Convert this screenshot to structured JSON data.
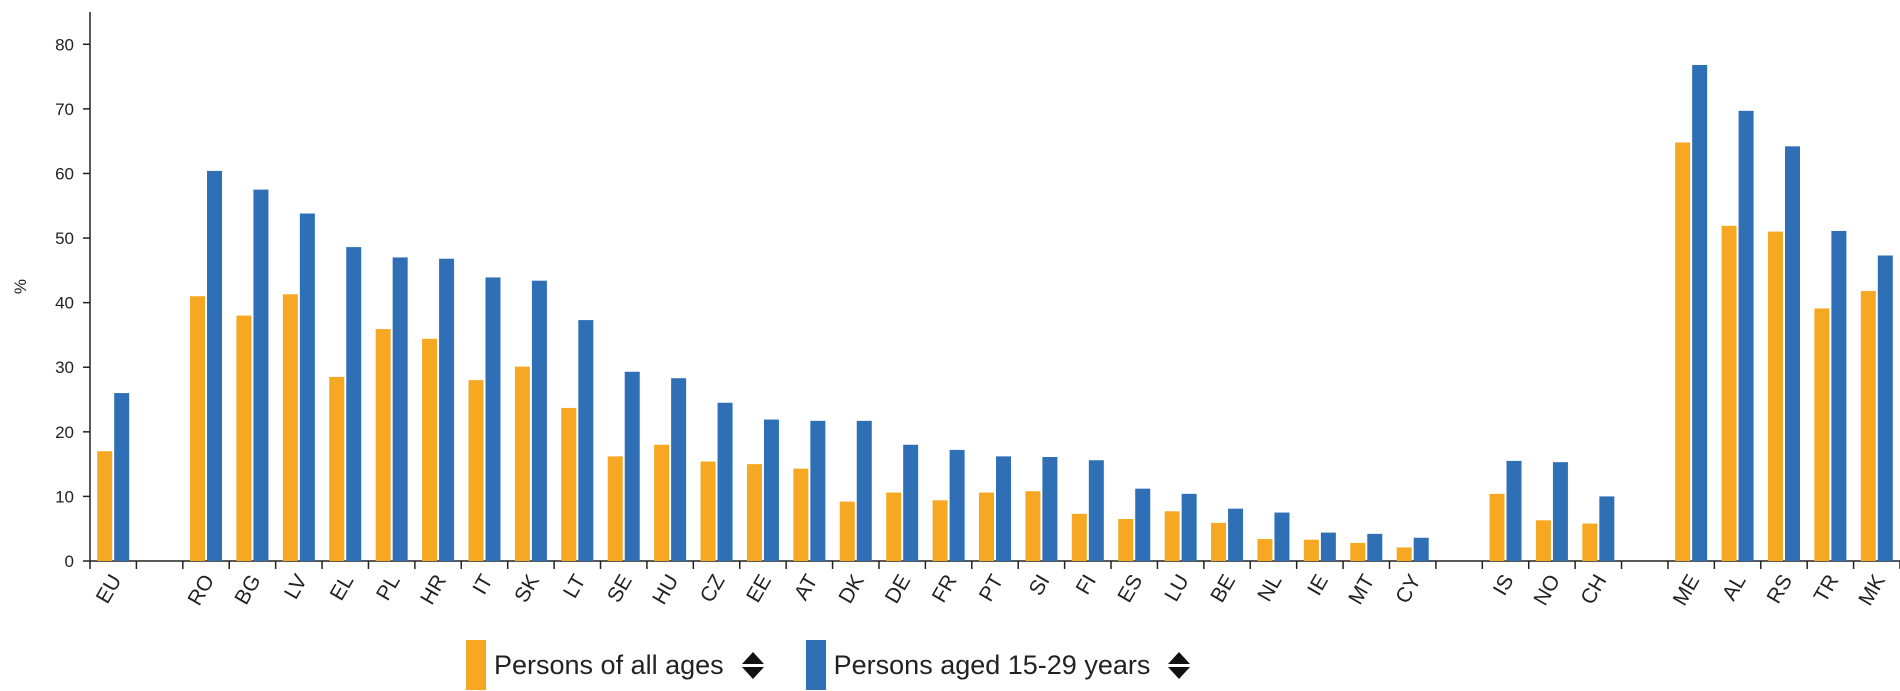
{
  "chart_data": {
    "type": "bar",
    "ylabel": "%",
    "ylim": [
      0,
      85
    ],
    "yticks": [
      0,
      10,
      20,
      30,
      40,
      50,
      60,
      70,
      80
    ],
    "grid": false,
    "legend_position": "bottom",
    "categories": [
      "EU",
      "",
      "RO",
      "BG",
      "LV",
      "EL",
      "PL",
      "HR",
      "IT",
      "SK",
      "LT",
      "SE",
      "HU",
      "CZ",
      "EE",
      "AT",
      "DK",
      "DE",
      "FR",
      "PT",
      "SI",
      "FI",
      "ES",
      "LU",
      "BE",
      "NL",
      "IE",
      "MT",
      "CY",
      "",
      "IS",
      "NO",
      "CH",
      "",
      "ME",
      "AL",
      "RS",
      "TR",
      "MK"
    ],
    "series": [
      {
        "name": "Persons of all ages",
        "color": "#F7A823",
        "values": [
          17.0,
          null,
          41.0,
          38.0,
          41.3,
          28.5,
          35.9,
          34.4,
          28.0,
          30.1,
          23.7,
          16.2,
          18.0,
          15.4,
          15.0,
          14.3,
          9.2,
          10.6,
          9.4,
          10.6,
          10.8,
          7.3,
          6.5,
          7.7,
          5.9,
          3.4,
          3.3,
          2.8,
          2.1,
          null,
          10.4,
          6.3,
          5.8,
          null,
          64.8,
          51.9,
          51.0,
          39.1,
          41.8
        ]
      },
      {
        "name": "Persons aged 15-29 years",
        "color": "#2F6FB5",
        "values": [
          26.0,
          null,
          60.4,
          57.5,
          53.8,
          48.6,
          47.0,
          46.8,
          43.9,
          43.4,
          37.3,
          29.3,
          28.3,
          24.5,
          21.9,
          21.7,
          21.7,
          18.0,
          17.2,
          16.2,
          16.1,
          15.6,
          11.2,
          10.4,
          8.1,
          7.5,
          4.4,
          4.2,
          3.6,
          null,
          15.5,
          15.3,
          10.0,
          null,
          76.8,
          69.7,
          64.2,
          51.1,
          47.3
        ]
      }
    ]
  },
  "legend": {
    "items": [
      {
        "label": "Persons of all ages"
      },
      {
        "label": "Persons aged 15-29 years"
      }
    ],
    "sort_icon": "sort-arrows-icon"
  }
}
